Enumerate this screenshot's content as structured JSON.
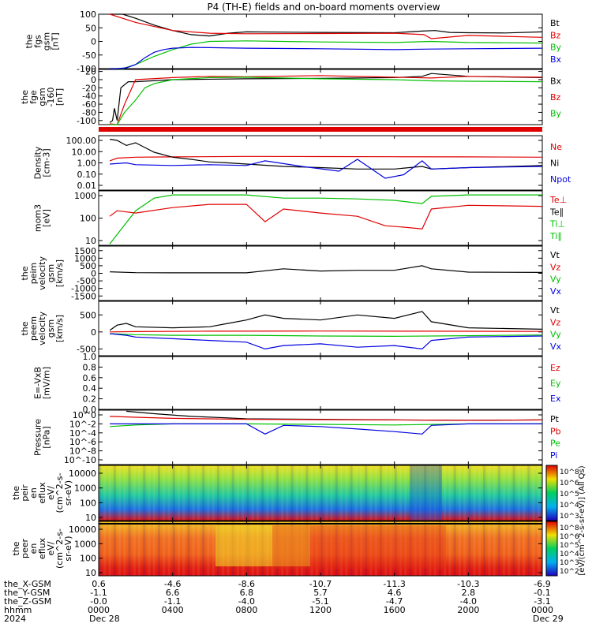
{
  "title": "P4 (TH-E) fields and on-board moments overview",
  "chart_data": [
    {
      "type": "line",
      "panel": "fgs",
      "ylabel": [
        "the",
        "fgs",
        "gsm",
        "[nT]"
      ],
      "yticks": [
        "100",
        "50",
        "0",
        "-50",
        "-100"
      ],
      "ylim": [
        -100,
        100
      ],
      "legend": [
        {
          "name": "Bt",
          "color": "#000000"
        },
        {
          "name": "Bz",
          "color": "#e00000"
        },
        {
          "name": "By",
          "color": "#00c000"
        },
        {
          "name": "Bx",
          "color": "#0000e0"
        }
      ],
      "series": [
        {
          "name": "Bt",
          "x": [
            0.6,
            1.3,
            2.0,
            3.0,
            4.0,
            5.0,
            6.0,
            7.0,
            8.0,
            12.0,
            16.0,
            17.5,
            18.2,
            19.0,
            20.0,
            22.0,
            24.0
          ],
          "y": [
            100,
            100,
            85,
            60,
            40,
            25,
            20,
            30,
            35,
            33,
            32,
            38,
            40,
            33,
            32,
            31,
            35
          ]
        },
        {
          "name": "Bz",
          "x": [
            0.6,
            2.0,
            4.0,
            6.0,
            8.0,
            12.0,
            16.0,
            17.6,
            18.0,
            20.0,
            24.0
          ],
          "y": [
            100,
            70,
            40,
            30,
            28,
            29,
            30,
            25,
            10,
            22,
            15
          ]
        },
        {
          "name": "By",
          "x": [
            0.6,
            1.3,
            2.0,
            3.0,
            4.0,
            5.0,
            6.0,
            8.0,
            12.0,
            16.0,
            18.0,
            20.0,
            24.0
          ],
          "y": [
            -100,
            -100,
            -85,
            -55,
            -30,
            -10,
            0,
            2,
            -2,
            -4,
            0,
            -4,
            -6
          ]
        },
        {
          "name": "Bx",
          "x": [
            0.6,
            1.0,
            1.5,
            2.0,
            2.5,
            3.0,
            3.5,
            4.0,
            5.0,
            6.0,
            8.0,
            12.0,
            16.0,
            18.0,
            20.0,
            24.0
          ],
          "y": [
            -100,
            -100,
            -97,
            -85,
            -60,
            -40,
            -30,
            -25,
            -22,
            -23,
            -25,
            -27,
            -30,
            -28,
            -27,
            -25
          ]
        }
      ]
    },
    {
      "type": "line",
      "panel": "fge",
      "ylabel": [
        "the",
        "fge",
        "gsm",
        "-160",
        "[nT]"
      ],
      "yticks": [
        "20",
        "0",
        "-20",
        "-40",
        "-60",
        "-80",
        "-100"
      ],
      "ylim": [
        -110,
        25
      ],
      "legend": [
        {
          "name": "Bx",
          "color": "#000000"
        },
        {
          "name": "Bz",
          "color": "#e00000"
        },
        {
          "name": "By",
          "color": "#00c000"
        }
      ],
      "series": [
        {
          "name": "Bx",
          "x": [
            0.6,
            0.75,
            0.85,
            1.0,
            1.2,
            1.6,
            2.0,
            4.0,
            8.0,
            12.0,
            16.0,
            17.5,
            18.0,
            20.0,
            24.0
          ],
          "y": [
            -105,
            -100,
            -70,
            -100,
            -20,
            -5,
            -5,
            0,
            2,
            3,
            5,
            8,
            15,
            8,
            5
          ]
        },
        {
          "name": "Bz",
          "x": [
            0.6,
            1.0,
            1.4,
            2.0,
            4.0,
            6.0,
            8.0,
            12.0,
            16.0,
            18.0,
            20.0,
            24.0
          ],
          "y": [
            -108,
            -110,
            -60,
            0,
            5,
            8,
            7,
            10,
            6,
            4,
            8,
            6
          ]
        },
        {
          "name": "By",
          "x": [
            0.6,
            1.0,
            1.4,
            2.0,
            2.5,
            3.0,
            4.0,
            6.0,
            8.0,
            12.0,
            16.0,
            18.0,
            20.0,
            24.0
          ],
          "y": [
            -110,
            -110,
            -80,
            -50,
            -20,
            -10,
            0,
            5,
            6,
            2,
            0,
            -3,
            -4,
            -5
          ]
        }
      ]
    },
    {
      "type": "line",
      "panel": "moments_density",
      "ylabel": [
        "Density",
        "[cm-3]"
      ],
      "yticks": [
        "100.00",
        "10.00",
        "1.00",
        "0.10",
        "0.01"
      ],
      "yscale": "log",
      "ylim": [
        0.005,
        200
      ],
      "legend": [
        {
          "name": "Ne",
          "color": "#e00000"
        },
        {
          "name": "Ni",
          "color": "#000000"
        },
        {
          "name": "Npot",
          "color": "#0000e0"
        }
      ],
      "series": [
        {
          "name": "Ne",
          "x": [
            0.6,
            1.0,
            2.0,
            4.0,
            8.0,
            12.0,
            16.0,
            20.0,
            24.0
          ],
          "y": [
            1.5,
            2.5,
            3.0,
            3.2,
            3.5,
            3.4,
            3.3,
            3.2,
            3.0
          ]
        },
        {
          "name": "Ni",
          "x": [
            0.6,
            1.0,
            1.5,
            2.0,
            2.5,
            3.0,
            4.0,
            5.0,
            6.0,
            7.0,
            8.0,
            10.0,
            12.0,
            14.0,
            16.0,
            17.5,
            18.0,
            20.0,
            24.0
          ],
          "y": [
            100,
            80,
            30,
            50,
            20,
            8,
            3,
            2,
            1.2,
            1,
            0.8,
            0.5,
            0.4,
            0.3,
            0.3,
            0.5,
            0.3,
            0.4,
            0.6
          ]
        },
        {
          "name": "Npot",
          "x": [
            0.6,
            1.5,
            2.0,
            4.0,
            6.0,
            8.0,
            9.0,
            11.0,
            13.0,
            14.0,
            15.5,
            16.5,
            17.5,
            18.0,
            20.0,
            24.0
          ],
          "y": [
            0.8,
            1.0,
            0.7,
            0.6,
            0.7,
            0.6,
            1.5,
            0.5,
            0.2,
            2.0,
            0.05,
            0.1,
            1.5,
            0.3,
            0.4,
            0.5
          ]
        }
      ]
    },
    {
      "type": "line",
      "panel": "temperature",
      "ylabel": [
        "mom3",
        "[eV]"
      ],
      "yticks": [
        "1000",
        "100",
        "10"
      ],
      "yscale": "log",
      "ylim": [
        5,
        5000
      ],
      "legend": [
        {
          "name": "Te⊥",
          "color": "#e00000"
        },
        {
          "name": "Te∥",
          "color": "#000000"
        },
        {
          "name": "Ti⊥",
          "color": "#00c000"
        },
        {
          "name": "Ti∥",
          "color": "#00c000"
        }
      ],
      "series": [
        {
          "name": "Ti",
          "x": [
            0.6,
            1.0,
            2.0,
            3.0,
            4.0,
            6.0,
            8.0,
            10.0,
            12.0,
            14.0,
            16.0,
            17.5,
            18.0,
            20.0,
            24.0
          ],
          "y": [
            6,
            20,
            400,
            2000,
            3000,
            3000,
            3000,
            2000,
            2000,
            1800,
            1500,
            1000,
            2500,
            3000,
            3000
          ]
        },
        {
          "name": "Te",
          "x": [
            0.6,
            1.0,
            2.0,
            4.0,
            6.0,
            8.0,
            9.0,
            10.0,
            12.0,
            14.0,
            15.5,
            16.5,
            17.5,
            18.0,
            20.0,
            24.0
          ],
          "y": [
            200,
            400,
            300,
            600,
            900,
            900,
            100,
            500,
            300,
            200,
            60,
            50,
            40,
            500,
            800,
            700
          ]
        }
      ]
    },
    {
      "type": "line",
      "panel": "peim_velocity",
      "ylabel": [
        "the",
        "peim",
        "velocity",
        "gsm",
        "[km/s]"
      ],
      "yticks": [
        "1500",
        "1000",
        "500",
        "0",
        "-500",
        "-1000",
        "-1500"
      ],
      "ylim": [
        -1800,
        1800
      ],
      "legend": [
        {
          "name": "Vt",
          "color": "#000000"
        },
        {
          "name": "Vz",
          "color": "#e00000"
        },
        {
          "name": "Vy",
          "color": "#00c000"
        },
        {
          "name": "Vx",
          "color": "#0000e0"
        }
      ],
      "series": [
        {
          "name": "Vt",
          "x": [
            0.6,
            2.0,
            4.0,
            8.0,
            10.0,
            12.0,
            14.0,
            16.0,
            17.5,
            18.0,
            20.0,
            24.0
          ],
          "y": [
            100,
            40,
            30,
            30,
            300,
            150,
            200,
            200,
            500,
            300,
            80,
            60
          ]
        }
      ]
    },
    {
      "type": "line",
      "panel": "peem_velocity",
      "ylabel": [
        "the",
        "peem",
        "velocity",
        "gsm",
        "[km/s]"
      ],
      "yticks": [
        "500",
        "0",
        "-500"
      ],
      "ylim": [
        -700,
        900
      ],
      "legend": [
        {
          "name": "Vt",
          "color": "#000000"
        },
        {
          "name": "Vz",
          "color": "#e00000"
        },
        {
          "name": "Vy",
          "color": "#00c000"
        },
        {
          "name": "Vx",
          "color": "#0000e0"
        }
      ],
      "series": [
        {
          "name": "Vt",
          "x": [
            0.6,
            1.0,
            1.5,
            2.0,
            4.0,
            6.0,
            7.0,
            8.0,
            9.0,
            10.0,
            12.0,
            14.0,
            16.0,
            17.5,
            18.0,
            20.0,
            22.0,
            24.0
          ],
          "y": [
            50,
            200,
            250,
            150,
            120,
            150,
            250,
            350,
            500,
            400,
            350,
            500,
            400,
            600,
            300,
            120,
            100,
            80
          ]
        },
        {
          "name": "Vz",
          "x": [
            0.6,
            2.0,
            6.0,
            12.0,
            18.0,
            24.0
          ],
          "y": [
            0,
            10,
            20,
            25,
            20,
            15
          ]
        },
        {
          "name": "Vy",
          "x": [
            0.6,
            2.0,
            4.0,
            8.0,
            12.0,
            16.0,
            20.0,
            24.0
          ],
          "y": [
            -50,
            -80,
            -100,
            -100,
            -120,
            -130,
            -110,
            -90
          ]
        },
        {
          "name": "Vx",
          "x": [
            0.6,
            1.5,
            2.0,
            4.0,
            6.0,
            8.0,
            9.0,
            10.0,
            12.0,
            14.0,
            16.0,
            17.5,
            18.0,
            20.0,
            24.0
          ],
          "y": [
            -50,
            -100,
            -150,
            -200,
            -250,
            -300,
            -500,
            -400,
            -350,
            -450,
            -400,
            -500,
            -250,
            -150,
            -120
          ]
        }
      ]
    },
    {
      "type": "line",
      "panel": "efield",
      "ylabel": [
        "E=-VxB",
        "[mV/m]"
      ],
      "yticks": [
        "1.0",
        "0.8",
        "0.6",
        "0.4",
        "0.2",
        "0.0"
      ],
      "ylim": [
        0,
        1
      ],
      "legend": [
        {
          "name": "Ez",
          "color": "#e00000"
        },
        {
          "name": "Ey",
          "color": "#00c000"
        },
        {
          "name": "Ex",
          "color": "#0000e0"
        }
      ],
      "series": []
    },
    {
      "type": "line",
      "panel": "pressure",
      "ylabel": [
        "Pressure",
        "[nPa]"
      ],
      "yticks": [
        "10^0",
        "10^-2",
        "10^-4",
        "10^-6",
        "10^-8",
        "10^-10"
      ],
      "yscale": "log",
      "ylim": [
        1e-10,
        5
      ],
      "legend": [
        {
          "name": "Pt",
          "color": "#000000"
        },
        {
          "name": "Pb",
          "color": "#e00000"
        },
        {
          "name": "Pe",
          "color": "#00c000"
        },
        {
          "name": "Pi",
          "color": "#0000e0"
        }
      ],
      "series": [
        {
          "name": "Pt",
          "x": [
            1.5,
            3.0,
            5.0,
            7.0,
            8.0,
            12.0,
            16.0,
            20.0,
            24.0
          ],
          "y": [
            3,
            1,
            0.3,
            0.15,
            0.1,
            0.08,
            0.06,
            0.05,
            0.06
          ]
        },
        {
          "name": "Pb",
          "x": [
            0.6,
            2.0,
            4.0,
            8.0,
            12.0,
            16.0,
            20.0,
            24.0
          ],
          "y": [
            0.3,
            0.2,
            0.12,
            0.08,
            0.07,
            0.06,
            0.05,
            0.06
          ]
        },
        {
          "name": "Pe",
          "x": [
            0.6,
            2.0,
            4.0,
            8.0,
            12.0,
            16.0,
            20.0,
            24.0
          ],
          "y": [
            0.003,
            0.006,
            0.01,
            0.01,
            0.008,
            0.006,
            0.01,
            0.01
          ]
        },
        {
          "name": "Pi",
          "x": [
            0.6,
            2.0,
            4.0,
            8.0,
            9.0,
            10.0,
            12.0,
            14.0,
            16.0,
            17.5,
            18.0,
            20.0,
            24.0
          ],
          "y": [
            0.01,
            0.01,
            0.01,
            0.01,
            0.0001,
            0.005,
            0.003,
            0.001,
            0.0003,
            0.0001,
            0.005,
            0.01,
            0.01
          ]
        }
      ]
    },
    {
      "type": "heatmap",
      "panel": "peir",
      "ylabel": [
        "the",
        "peir",
        "en",
        "eflux",
        "eV/",
        "(cm^2-s-",
        "sr-eV)"
      ],
      "yticks": [
        "10000",
        "1000",
        "100",
        "10"
      ],
      "colorbar_label": "[eV/(cm^2-s-sr-eV)] (All Qs)",
      "colorbar_ticks": [
        "10^8",
        "10^6",
        "10^5",
        "10^4",
        "10^3"
      ]
    },
    {
      "type": "heatmap",
      "panel": "peer",
      "ylabel": [
        "the",
        "peer",
        "en",
        "eflux",
        "eV/",
        "(cm^2-s-",
        "sr-eV)"
      ],
      "yticks": [
        "10000",
        "1000",
        "100",
        "10"
      ],
      "colorbar_ticks": [
        "10^8",
        "10^6",
        "10^5",
        "10^4",
        "10^3",
        "10^2"
      ]
    }
  ],
  "xaxis": {
    "xlim": [
      0,
      24
    ],
    "row_labels": [
      "the_X-GSM",
      "the_Y-GSM",
      "the_Z-GSM",
      "hhmm",
      "2024"
    ],
    "ticks": [
      {
        "x": 0,
        "vals": [
          "0.6",
          "-1.1",
          "-0.0",
          "0000",
          "Dec 28"
        ]
      },
      {
        "x": 4,
        "vals": [
          "-4.6",
          "6.6",
          "-1.1",
          "0400",
          ""
        ]
      },
      {
        "x": 8,
        "vals": [
          "-8.6",
          "6.8",
          "-4.0",
          "0800",
          ""
        ]
      },
      {
        "x": 12,
        "vals": [
          "-10.7",
          "5.7",
          "-5.1",
          "1200",
          ""
        ]
      },
      {
        "x": 16,
        "vals": [
          "-11.3",
          "4.6",
          "-4.7",
          "1600",
          ""
        ]
      },
      {
        "x": 20,
        "vals": [
          "-10.3",
          "2.8",
          "-4.0",
          "2000",
          ""
        ]
      },
      {
        "x": 24,
        "vals": [
          "-6.9",
          "-0.1",
          "-3.1",
          "0000",
          "Dec 29"
        ]
      }
    ]
  }
}
